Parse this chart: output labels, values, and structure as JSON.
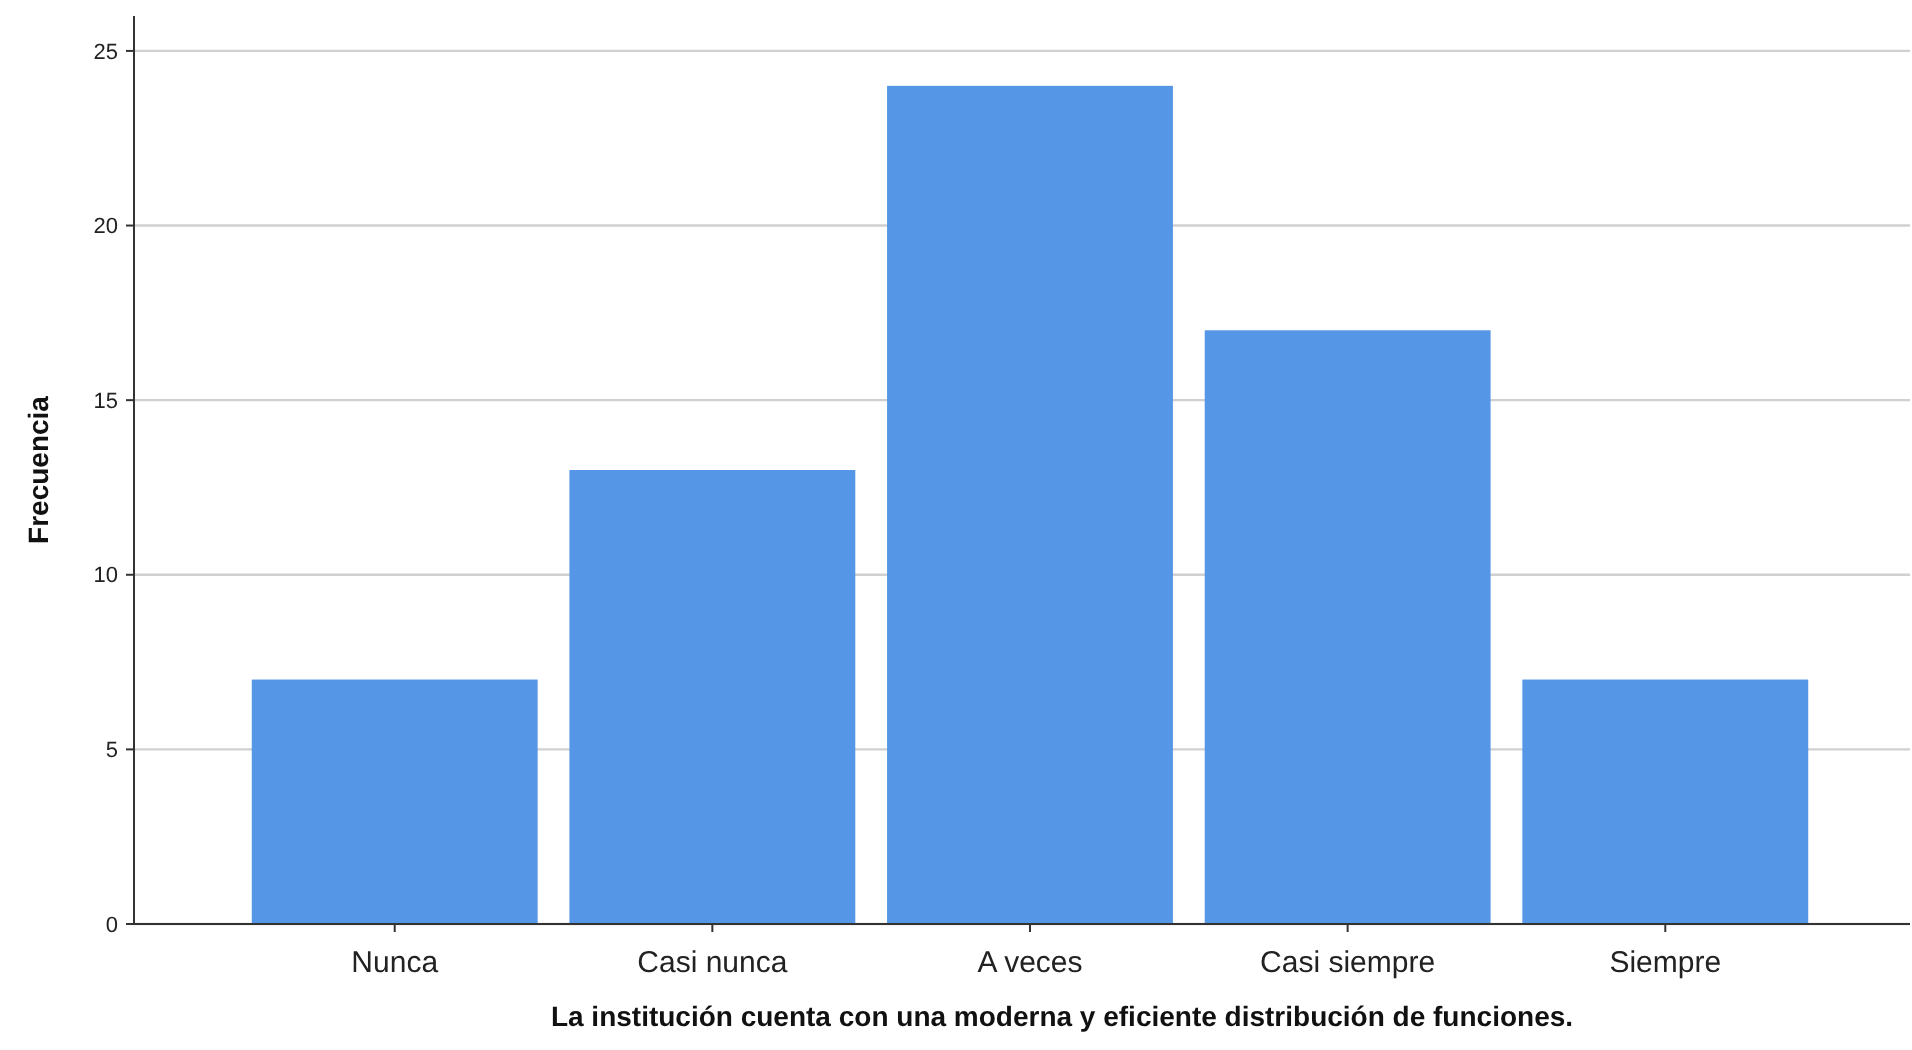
{
  "chart_data": {
    "type": "bar",
    "xlabel": "La institución cuenta con una moderna y eficiente distribución de funciones.",
    "ylabel": "Frecuencia",
    "categories": [
      "Nunca",
      "Casi nunca",
      "A veces",
      "Casi siempre",
      "Siempre"
    ],
    "values": [
      7,
      13,
      24,
      17,
      7
    ],
    "color": "#5597e6",
    "ylim": [
      0,
      26
    ],
    "yticks": [
      0,
      5,
      10,
      15,
      20,
      25
    ],
    "grid": "y"
  }
}
